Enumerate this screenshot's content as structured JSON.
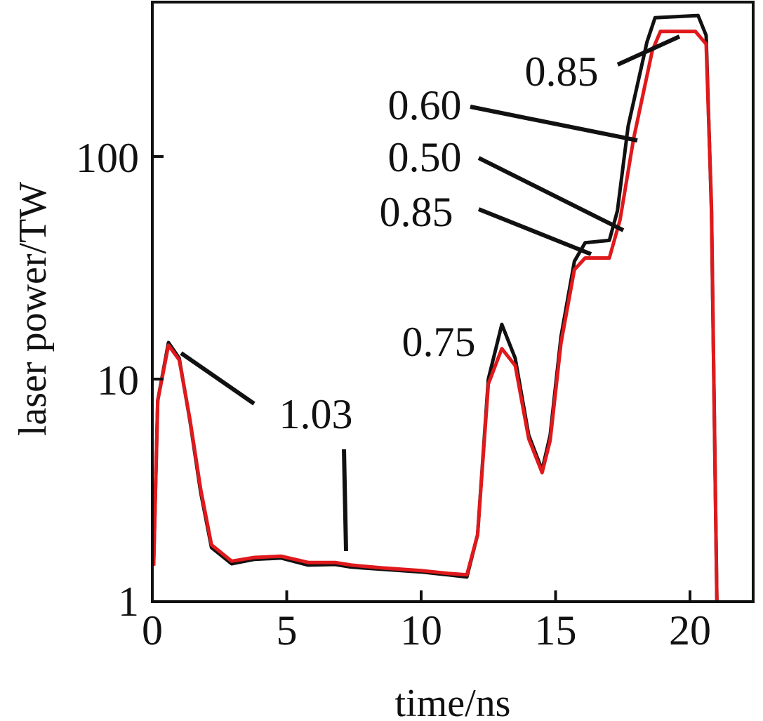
{
  "chart_data": {
    "type": "line",
    "title": "",
    "xlabel": "time/ns",
    "ylabel": "laser power/TW",
    "xlim": [
      0,
      22.35
    ],
    "ylim": [
      1,
      494
    ],
    "yscale": "log",
    "grid": false,
    "xticks": [
      0,
      5,
      10,
      15,
      20
    ],
    "xtick_labels": [
      "0",
      "5",
      "10",
      "15",
      "20"
    ],
    "yticks": [
      1,
      10,
      100
    ],
    "ytick_labels": [
      "1",
      "10",
      "100"
    ],
    "colors": {
      "black_series": "#111111",
      "red_series": "#e0191c"
    },
    "series": [
      {
        "color": "#111111",
        "x": [
          0.05,
          0.2,
          0.6,
          1.0,
          1.4,
          1.8,
          2.2,
          2.95,
          3.8,
          4.8,
          5.8,
          6.8,
          7.4,
          8.5,
          10.0,
          11.0,
          11.7,
          12.1,
          12.5,
          13.0,
          13.5,
          14.0,
          14.5,
          14.8,
          15.2,
          15.7,
          16.1,
          17.0,
          17.3,
          17.7,
          18.4,
          18.7,
          20.3,
          20.6,
          20.8,
          21.0
        ],
        "y": [
          1.5,
          8,
          14.6,
          12.4,
          6.5,
          3.1,
          1.75,
          1.48,
          1.55,
          1.57,
          1.46,
          1.47,
          1.43,
          1.4,
          1.36,
          1.32,
          1.29,
          2.0,
          10,
          17.6,
          12.4,
          5.6,
          3.9,
          5.6,
          15.5,
          33.8,
          41,
          42,
          57,
          137,
          327,
          420,
          430,
          350,
          57,
          1
        ]
      },
      {
        "color": "#e0191c",
        "x": [
          0.05,
          0.2,
          0.6,
          1.0,
          1.4,
          1.8,
          2.2,
          2.95,
          3.8,
          4.8,
          5.8,
          6.8,
          7.4,
          8.5,
          10.0,
          11.0,
          11.7,
          12.1,
          12.5,
          13.0,
          13.5,
          14.0,
          14.5,
          14.8,
          15.2,
          15.7,
          16.1,
          17.0,
          17.4,
          17.9,
          18.6,
          18.9,
          20.2,
          20.6,
          20.8,
          21.0
        ],
        "y": [
          1.45,
          8,
          14.2,
          12.2,
          6.6,
          3.2,
          1.8,
          1.52,
          1.58,
          1.6,
          1.5,
          1.5,
          1.46,
          1.42,
          1.38,
          1.34,
          1.32,
          2.0,
          9.5,
          13.7,
          11.5,
          5.4,
          3.8,
          5.3,
          14.5,
          31,
          35,
          35,
          52,
          120,
          300,
          365,
          365,
          320,
          60,
          1
        ]
      }
    ],
    "annotations": [
      "0.85",
      "0.60",
      "0.50",
      "0.85",
      "0.75",
      "1.03"
    ]
  }
}
